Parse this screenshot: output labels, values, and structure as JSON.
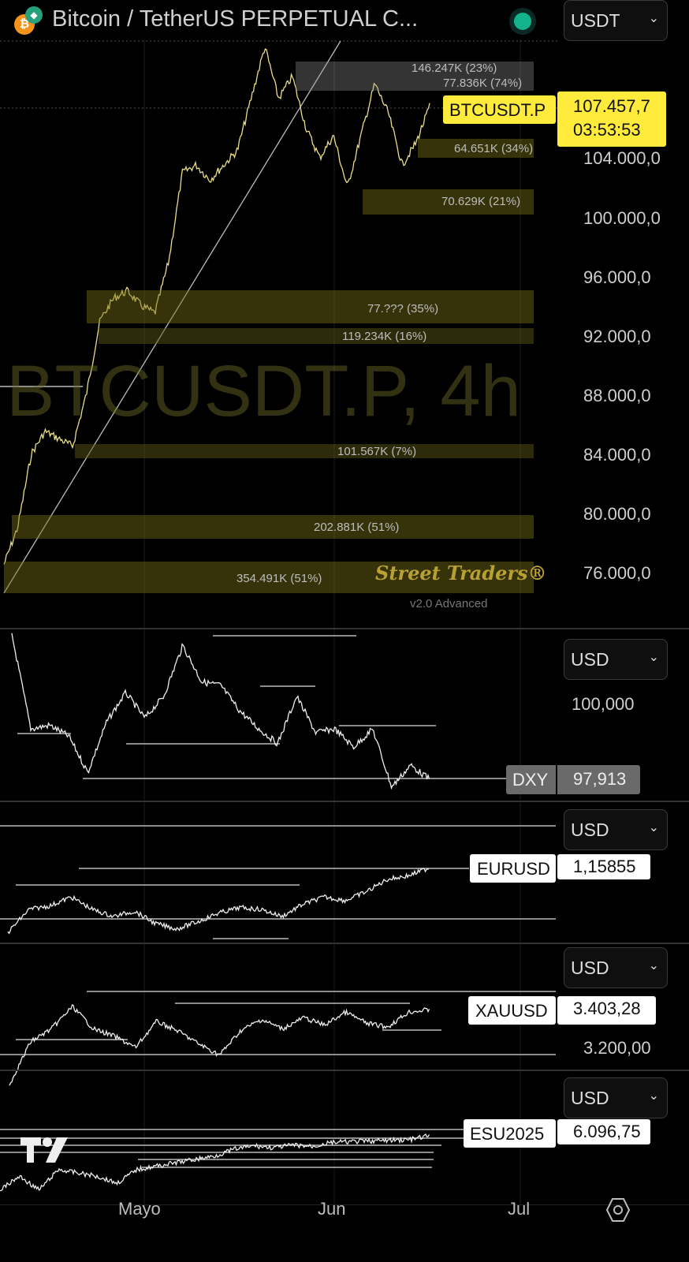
{
  "header": {
    "title": "Bitcoin / TetherUS PERPETUAL C...",
    "currency": "USDT",
    "status_color": "#13b38e"
  },
  "main": {
    "watermark": "BTCUSDT.P, 4h",
    "axis": [
      "104.000,0",
      "100.000,0",
      "96.000,0",
      "92.000,0",
      "88.000,0",
      "84.000,0",
      "80.000,0",
      "76.000,0"
    ],
    "symbol": "BTCUSDT.P",
    "last_price": "107.457,7",
    "countdown": "03:53:53",
    "zones": [
      "146.247K (23%)",
      "77.836K (74%)",
      "64.651K (34%)",
      "70.629K (21%)",
      "77.??? (35%)",
      "119.234K (16%)",
      "101.567K (7%)",
      "202.881K (51%)",
      "354.491K (51%)"
    ],
    "brand": "Street Traders®",
    "version": "v2.0 Advanced",
    "line_color": "#e8de8a",
    "zone_color": "#786e14"
  },
  "dxy": {
    "currency": "USD",
    "axis": [
      "100,000"
    ],
    "symbol": "DXY",
    "last": "97,913"
  },
  "eurusd": {
    "currency": "USD",
    "symbol": "EURUSD",
    "last": "1,15855"
  },
  "xauusd": {
    "currency": "USD",
    "axis": [
      "3.200,00"
    ],
    "symbol": "XAUUSD",
    "last": "3.403,28"
  },
  "es": {
    "currency": "USD",
    "symbol": "ESU2025",
    "last": "6.096,75"
  },
  "time_axis": [
    "Mayo",
    "Jun",
    "Jul"
  ],
  "chart_data": [
    {
      "type": "line",
      "name": "BTCUSDT.P",
      "ylim": [
        74500,
        113000
      ],
      "values": [
        76500,
        79000,
        84000,
        85500,
        85000,
        84500,
        88000,
        93000,
        94500,
        95000,
        94000,
        93500,
        97000,
        103000,
        103500,
        102500,
        103500,
        104500,
        108000,
        111500,
        108000,
        109500,
        106000,
        104000,
        105500,
        102000,
        105500,
        109000,
        107000,
        103500,
        105000,
        107458
      ]
    },
    {
      "type": "line",
      "name": "DXY",
      "values": [
        101.9,
        99.3,
        99.4,
        99.1,
        98.1,
        99.5,
        100.3,
        99.6,
        100.2,
        101.6,
        100.6,
        100.5,
        99.8,
        99.3,
        98.9,
        100.2,
        99.2,
        99.3,
        98.8,
        99.3,
        97.7,
        98.3,
        97.91
      ]
    },
    {
      "type": "line",
      "name": "EURUSD",
      "values": [
        1.122,
        1.135,
        1.137,
        1.142,
        1.135,
        1.131,
        1.134,
        1.127,
        1.124,
        1.128,
        1.133,
        1.136,
        1.135,
        1.131,
        1.138,
        1.142,
        1.14,
        1.145,
        1.152,
        1.154,
        1.15855
      ]
    },
    {
      "type": "line",
      "name": "XAUUSD",
      "values": [
        3000,
        3230,
        3300,
        3420,
        3300,
        3260,
        3200,
        3340,
        3290,
        3220,
        3160,
        3290,
        3350,
        3300,
        3360,
        3320,
        3390,
        3330,
        3310,
        3390,
        3403.28
      ]
    },
    {
      "type": "line",
      "name": "ESU2025",
      "values": [
        5300,
        5500,
        5300,
        5600,
        5550,
        5500,
        5400,
        5600,
        5650,
        5700,
        5750,
        5800,
        5900,
        5950,
        5920,
        5960,
        5940,
        6000,
        6010,
        6020,
        6030,
        6040,
        6096.75
      ]
    }
  ]
}
